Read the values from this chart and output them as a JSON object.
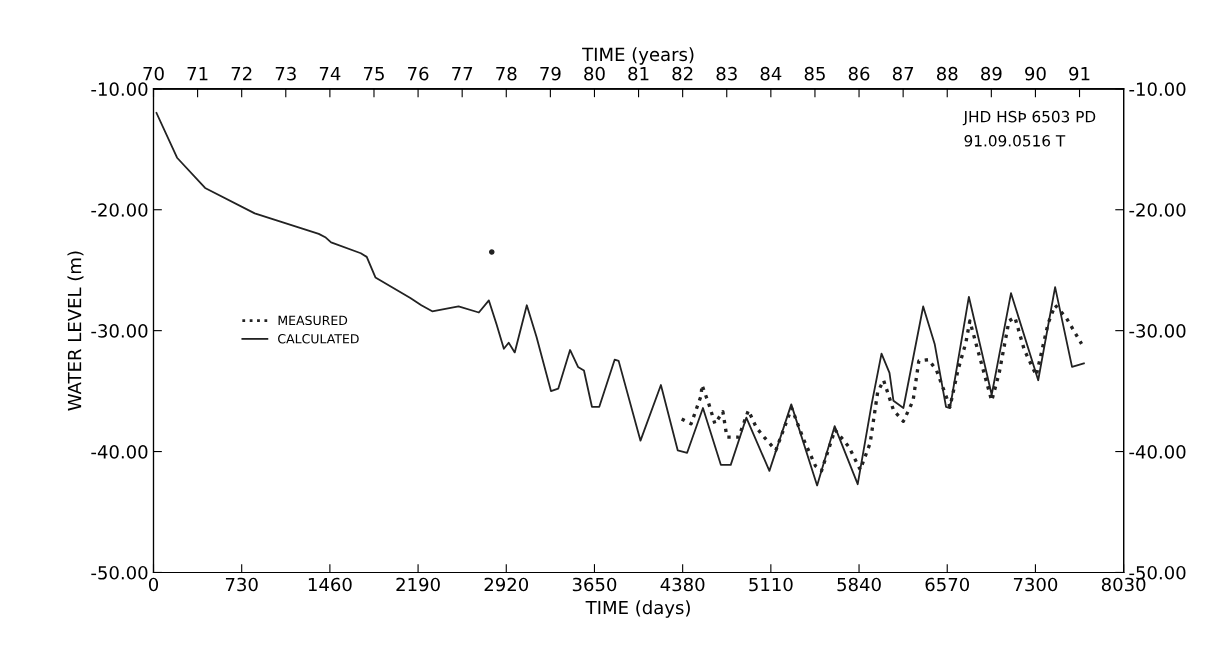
{
  "chart_data": {
    "type": "line",
    "xlabel": "TIME (days)",
    "x2label": "TIME (years)",
    "ylabel": "WATER LEVEL (m)",
    "annotations": [
      "JHD HSÞ 6503 PD",
      "91.09.0516 T"
    ],
    "xlim": [
      0,
      8030
    ],
    "xticks": [
      0,
      730,
      1460,
      2190,
      2920,
      3650,
      4380,
      5110,
      5840,
      6570,
      7300,
      8030
    ],
    "x2lim": [
      70,
      92
    ],
    "x2ticks": [
      70,
      71,
      72,
      73,
      74,
      75,
      76,
      77,
      78,
      79,
      80,
      81,
      82,
      83,
      84,
      85,
      86,
      87,
      88,
      89,
      90,
      91
    ],
    "ylim": [
      -50,
      -10
    ],
    "yticks": [
      {
        "value": -50,
        "label": "-50.00"
      },
      {
        "value": -40,
        "label": "-40.00"
      },
      {
        "value": -30,
        "label": "-30.00"
      },
      {
        "value": -20,
        "label": "-20.00"
      },
      {
        "value": -10,
        "label": "-10.00"
      }
    ],
    "y2lim": [
      -50,
      -10
    ],
    "y2ticks": [
      {
        "value": -50,
        "label": "-50.00"
      },
      {
        "value": -40,
        "label": "-40.00"
      },
      {
        "value": -30,
        "label": "-30.00"
      },
      {
        "value": -20,
        "label": "-20.00"
      },
      {
        "value": -10,
        "label": "-10.00"
      }
    ],
    "grid": false,
    "legend": "center left",
    "series": [
      {
        "name": "MEASURED",
        "color": "#222222",
        "line_style": "dotted",
        "x": [
          2800,
          2850,
          4372,
          4450,
          4532,
          4540,
          4598,
          4647,
          4713,
          4746,
          4844,
          4924,
          4989,
          5054,
          5151,
          5282,
          5381,
          5480,
          5529,
          5641,
          5755,
          5850,
          5932,
          5994,
          6043,
          6126,
          6207,
          6287,
          6335,
          6416,
          6482,
          6593,
          6658,
          6724,
          6757,
          6806,
          6938,
          7000,
          7081,
          7130,
          7208,
          7307,
          7405,
          7463,
          7553,
          7682
        ],
        "values": [
          -23.5,
          null,
          -37.3,
          -37.7,
          -35.4,
          -34.5,
          -36.1,
          -37.7,
          -36.7,
          -38.8,
          -38.8,
          -36.6,
          -38.0,
          -38.8,
          -39.9,
          -36.4,
          -39.0,
          -41.2,
          -41.6,
          -38.2,
          -39.6,
          -41.5,
          -39.3,
          -35.1,
          -34.1,
          -36.6,
          -37.5,
          -35.8,
          -32.5,
          -32.4,
          -33.3,
          -36.3,
          -33.3,
          -31.0,
          -29.2,
          -31.0,
          -35.8,
          -33.5,
          -29.2,
          -28.9,
          -31.6,
          -33.7,
          -29.4,
          -27.9,
          -28.9,
          -31.1
        ]
      },
      {
        "name": "CALCULATED",
        "color": "#222222",
        "line_style": "solid",
        "x": [
          25,
          195,
          427,
          838,
          1368,
          1426,
          1470,
          1716,
          1765,
          1837,
          2126,
          2217,
          2307,
          2525,
          2693,
          2776,
          2840,
          2900,
          2940,
          2990,
          3090,
          3170,
          3290,
          3350,
          3448,
          3514,
          3563,
          3629,
          3690,
          3817,
          3850,
          4031,
          4200,
          4339,
          4417,
          4548,
          4696,
          4778,
          4907,
          5098,
          5279,
          5493,
          5638,
          5829,
          5944,
          6026,
          6092,
          6125,
          6207,
          6371,
          6466,
          6560,
          6593,
          6749,
          6938,
          7098,
          7323,
          7463,
          7603,
          7701
        ],
        "values": [
          -12.0,
          -15.7,
          -18.2,
          -20.3,
          -22.0,
          -22.3,
          -22.7,
          -23.6,
          -23.9,
          -25.6,
          -27.3,
          -27.9,
          -28.4,
          -28.0,
          -28.5,
          -27.5,
          -29.5,
          -31.5,
          -31.0,
          -31.8,
          -27.9,
          -30.5,
          -35.0,
          -34.8,
          -31.6,
          -33.0,
          -33.3,
          -36.3,
          -36.3,
          -32.4,
          -32.5,
          -39.1,
          -34.5,
          -39.9,
          -40.1,
          -36.4,
          -41.1,
          -41.1,
          -37.2,
          -41.6,
          -36.1,
          -42.8,
          -37.9,
          -42.7,
          -36.1,
          -31.9,
          -33.5,
          -35.8,
          -36.4,
          -28.0,
          -31.1,
          -36.3,
          -36.4,
          -27.2,
          -35.3,
          -26.9,
          -34.1,
          -26.4,
          -33.0,
          -32.7
        ]
      }
    ]
  }
}
